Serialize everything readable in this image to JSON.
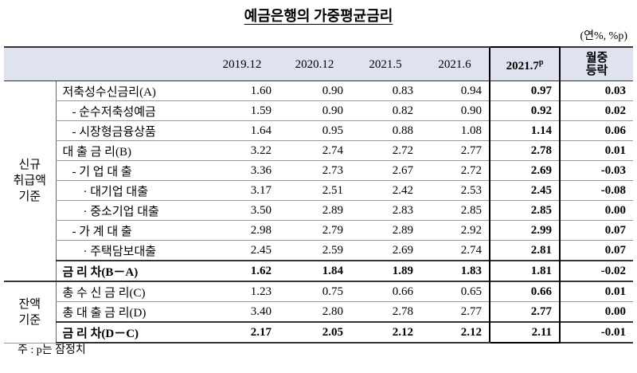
{
  "header": {
    "title": "예금은행의 가중평균금리",
    "unit": "(연%, %p)"
  },
  "table": {
    "columns": [
      "2019.12",
      "2020.12",
      "2021.5",
      "2021.6",
      {
        "text": "2021.7",
        "sup": "p"
      },
      [
        "월중",
        "등락"
      ]
    ],
    "groups": [
      {
        "lines": [
          "신규",
          "취급액",
          "기준"
        ]
      },
      {
        "lines": [
          "잔액",
          "기준"
        ]
      }
    ],
    "rows": [
      {
        "label": "저축성수신금리(A)",
        "values": [
          "1.60",
          "0.90",
          "0.83",
          "0.94",
          "0.97",
          "0.03"
        ]
      },
      {
        "label": "- 순수저축성예금",
        "values": [
          "1.59",
          "0.90",
          "0.82",
          "0.90",
          "0.92",
          "0.02"
        ]
      },
      {
        "label": "- 시장형금융상품",
        "values": [
          "1.64",
          "0.95",
          "0.88",
          "1.08",
          "1.14",
          "0.06"
        ]
      },
      {
        "label": "대 출 금 리(B)",
        "values": [
          "3.22",
          "2.74",
          "2.72",
          "2.77",
          "2.78",
          "0.01"
        ]
      },
      {
        "label": "- 기 업 대 출",
        "values": [
          "3.36",
          "2.73",
          "2.67",
          "2.72",
          "2.69",
          "-0.03"
        ]
      },
      {
        "label": "· 대기업 대출",
        "values": [
          "3.17",
          "2.51",
          "2.42",
          "2.53",
          "2.45",
          "-0.08"
        ]
      },
      {
        "label": "· 중소기업 대출",
        "values": [
          "3.50",
          "2.89",
          "2.83",
          "2.85",
          "2.85",
          "0.00"
        ]
      },
      {
        "label": "- 가 계 대 출",
        "values": [
          "2.98",
          "2.79",
          "2.89",
          "2.92",
          "2.99",
          "0.07"
        ]
      },
      {
        "label": "· 주택담보대출",
        "values": [
          "2.45",
          "2.59",
          "2.69",
          "2.74",
          "2.81",
          "0.07"
        ]
      },
      {
        "label": "금 리 차(B－A)",
        "values": [
          "1.62",
          "1.84",
          "1.89",
          "1.83",
          "1.81",
          "-0.02"
        ]
      },
      {
        "label": "총 수 신 금 리(C)",
        "values": [
          "1.23",
          "0.75",
          "0.66",
          "0.65",
          "0.66",
          "0.01"
        ]
      },
      {
        "label": "총 대 출 금 리(D)",
        "values": [
          "3.40",
          "2.80",
          "2.78",
          "2.77",
          "2.77",
          "0.00"
        ]
      },
      {
        "label": "금 리 차(D－C)",
        "values": [
          "2.17",
          "2.05",
          "2.12",
          "2.12",
          "2.11",
          "-0.01"
        ]
      }
    ]
  },
  "footnote": "주 : p는 잠정치"
}
